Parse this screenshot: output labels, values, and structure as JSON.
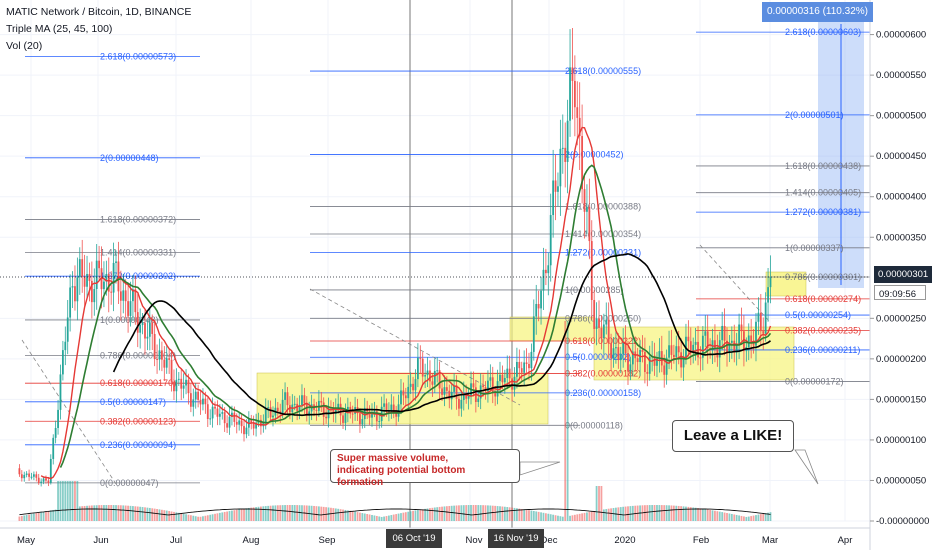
{
  "header": {
    "title": "MATIC Network / Bitcoin, 1D, BINANCE",
    "indicator1": "Triple MA (25, 45, 100)",
    "indicator2": "Vol (20)"
  },
  "price_axis": {
    "ticks": [
      "0.00000600",
      "0.00000550",
      "0.00000500",
      "0.00000450",
      "0.00000400",
      "0.00000350",
      "0.00000250",
      "0.00000200",
      "0.00000150",
      "0.00000100",
      "0.00000050",
      "-0.00000000"
    ],
    "tick_values": [
      600,
      550,
      500,
      450,
      400,
      350,
      250,
      200,
      150,
      100,
      50,
      0
    ],
    "last_price": "0.00000301",
    "last_price_value": 301,
    "countdown": "09:09:56"
  },
  "time_axis": {
    "labels": [
      "May",
      "Jun",
      "Jul",
      "Aug",
      "Sep",
      "Nov",
      "Dec",
      "2020",
      "Feb",
      "Mar",
      "Apr"
    ],
    "highlight_dates": [
      "06 Oct '19",
      "16 Nov '19"
    ]
  },
  "measure_label": "0.00000316 (110.32%)",
  "annotations": {
    "volume_note_line1": "Super massive volume,",
    "volume_note_line2": "indicating potential bottom formation",
    "like_note": "Leave a LIKE!"
  },
  "fib_sets": [
    {
      "levels": [
        {
          "text": "2.618(0.00000573)",
          "value": 573
        },
        {
          "text": "2(0.00000448)",
          "value": 448
        },
        {
          "text": "1.618(0.00000372)",
          "value": 372
        },
        {
          "text": "1.414(0.00000331)",
          "value": 331
        },
        {
          "text": "1.272(0.00000302)",
          "value": 302
        },
        {
          "text": "1(0.00000248)",
          "value": 248
        },
        {
          "text": "0.786(0.00000204)",
          "value": 204
        },
        {
          "text": "0.618(0.00000170)",
          "value": 170
        },
        {
          "text": "0.5(0.00000147)",
          "value": 147
        },
        {
          "text": "0.382(0.00000123)",
          "value": 123
        },
        {
          "text": "0.236(0.00000094)",
          "value": 94
        },
        {
          "text": "0(0.00000047)",
          "value": 47
        }
      ]
    },
    {
      "levels": [
        {
          "text": "2.618(0.00000555)",
          "value": 555
        },
        {
          "text": "2(0.00000452)",
          "value": 452
        },
        {
          "text": "1.618(0.00000388)",
          "value": 388
        },
        {
          "text": "1.414(0.00000354)",
          "value": 354
        },
        {
          "text": "1.272(0.00000331)",
          "value": 331
        },
        {
          "text": "1(0.00000285)",
          "value": 285
        },
        {
          "text": "0.786(0.00000250)",
          "value": 250
        },
        {
          "text": "0.618(0.00000222)",
          "value": 222
        },
        {
          "text": "0.5(0.00000202)",
          "value": 202
        },
        {
          "text": "0.382(0.00000182)",
          "value": 182
        },
        {
          "text": "0.236(0.00000158)",
          "value": 158
        },
        {
          "text": "0(0.00000118)",
          "value": 118
        }
      ]
    },
    {
      "levels": [
        {
          "text": "2.618(0.00000603)",
          "value": 603
        },
        {
          "text": "2(0.00000501)",
          "value": 501
        },
        {
          "text": "1.618(0.00000438)",
          "value": 438
        },
        {
          "text": "1.414(0.00000405)",
          "value": 405
        },
        {
          "text": "1.272(0.00000381)",
          "value": 381
        },
        {
          "text": "1(0.00000337)",
          "value": 337
        },
        {
          "text": "0.786(0.00000301)",
          "value": 301
        },
        {
          "text": "0.618(0.00000274)",
          "value": 274
        },
        {
          "text": "0.5(0.00000254)",
          "value": 254
        },
        {
          "text": "0.382(0.00000235)",
          "value": 235
        },
        {
          "text": "0.236(0.00000211)",
          "value": 211
        },
        {
          "text": "0(0.00000172)",
          "value": 172
        }
      ]
    }
  ],
  "colors": {
    "up": "#26a69a",
    "down": "#ef5350",
    "ma_fast": "#e53935",
    "ma_mid": "#2e7d32",
    "ma_slow": "#000000",
    "fib_blue": "#2962ff",
    "fib_red": "#e53935",
    "fib_gray": "#787b86",
    "zone": "#f7f37a",
    "measure": "#90b4f5"
  },
  "chart_data": {
    "type": "candlestick",
    "unit": "satoshi (1e-8 BTC)",
    "ylim": [
      0,
      640
    ],
    "x_range": [
      "2019-05-01",
      "2020-04-30"
    ],
    "key_points": [
      {
        "date": "2019-05-01",
        "close": 60
      },
      {
        "date": "2019-05-14",
        "close": 48
      },
      {
        "date": "2019-05-24",
        "close": 300
      },
      {
        "date": "2019-06-01",
        "close": 295
      },
      {
        "date": "2019-06-10",
        "close": 300
      },
      {
        "date": "2019-06-20",
        "close": 250
      },
      {
        "date": "2019-07-05",
        "close": 175
      },
      {
        "date": "2019-07-20",
        "close": 135
      },
      {
        "date": "2019-08-05",
        "close": 115
      },
      {
        "date": "2019-08-20",
        "close": 145
      },
      {
        "date": "2019-09-10",
        "close": 135
      },
      {
        "date": "2019-09-25",
        "close": 130
      },
      {
        "date": "2019-10-06",
        "close": 142
      },
      {
        "date": "2019-10-15",
        "close": 190
      },
      {
        "date": "2019-10-30",
        "close": 150
      },
      {
        "date": "2019-11-16",
        "close": 170
      },
      {
        "date": "2019-11-28",
        "close": 190
      },
      {
        "date": "2019-12-05",
        "close": 300
      },
      {
        "date": "2019-12-12",
        "close": 450
      },
      {
        "date": "2019-12-18",
        "close": 540
      },
      {
        "date": "2019-12-26",
        "close": 250
      },
      {
        "date": "2020-01-05",
        "close": 205
      },
      {
        "date": "2020-01-20",
        "close": 195
      },
      {
        "date": "2020-02-05",
        "close": 215
      },
      {
        "date": "2020-02-20",
        "close": 220
      },
      {
        "date": "2020-03-01",
        "close": 225
      },
      {
        "date": "2020-03-05",
        "close": 250
      },
      {
        "date": "2020-03-08",
        "close": 301
      }
    ]
  }
}
